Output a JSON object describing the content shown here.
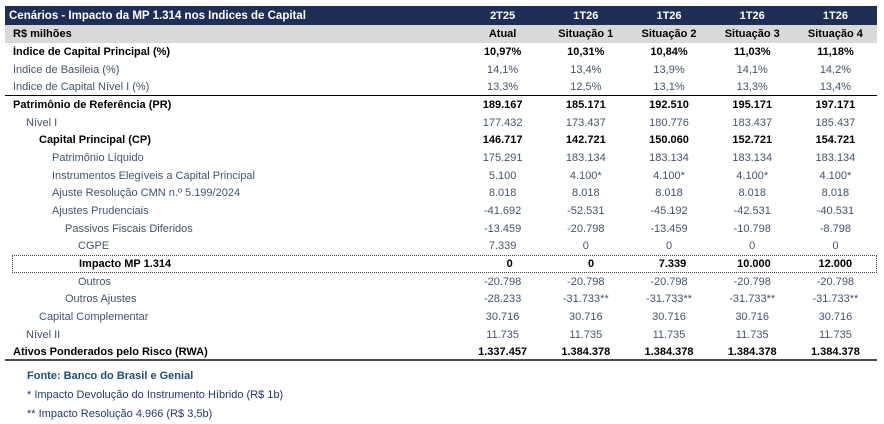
{
  "title": "Cenários - Impacto da MP 1.314 nos Índices de Capital",
  "unit_label": "R$ milhões",
  "columns": [
    "2T25",
    "1T26",
    "1T26",
    "1T26",
    "1T26"
  ],
  "subcolumns": [
    "Atual",
    "Situação 1",
    "Situação 2",
    "Situação 3",
    "Situação 4"
  ],
  "rows": [
    {
      "label": "Índice de Capital Principal (%)",
      "indent": 0,
      "bold": true,
      "values": [
        "10,97%",
        "10,31%",
        "10,84%",
        "11,03%",
        "11,18%"
      ]
    },
    {
      "label": "Índice de Basileia (%)",
      "indent": 0,
      "bold": false,
      "values": [
        "14,1%",
        "13,4%",
        "13,9%",
        "14,1%",
        "14,2%"
      ]
    },
    {
      "label": "Índice de Capital Nível I (%)",
      "indent": 0,
      "bold": false,
      "values": [
        "13,3%",
        "12,5%",
        "13,1%",
        "13,3%",
        "13,4%"
      ],
      "rule_below": "thin"
    },
    {
      "label": "Patrimônio de Referência (PR)",
      "indent": 0,
      "bold": true,
      "values": [
        "189.167",
        "185.171",
        "192.510",
        "195.171",
        "197.171"
      ]
    },
    {
      "label": "Nível I",
      "indent": 1,
      "bold": false,
      "values": [
        "177.432",
        "173.437",
        "180.776",
        "183.437",
        "185.437"
      ]
    },
    {
      "label": "Capital Principal (CP)",
      "indent": 2,
      "bold": true,
      "values": [
        "146.717",
        "142.721",
        "150.060",
        "152.721",
        "154.721"
      ]
    },
    {
      "label": "Patrimônio Líquido",
      "indent": 3,
      "bold": false,
      "values": [
        "175.291",
        "183.134",
        "183.134",
        "183.134",
        "183.134"
      ]
    },
    {
      "label": "Instrumentos Elegíveis a Capital Principal",
      "indent": 3,
      "bold": false,
      "values": [
        "5.100",
        "4.100*",
        "4.100*",
        "4.100*",
        "4.100*"
      ]
    },
    {
      "label": "Ajuste Resolução CMN n.º 5.199/2024",
      "indent": 3,
      "bold": false,
      "values": [
        "8.018",
        "8.018",
        "8.018",
        "8.018",
        "8.018"
      ]
    },
    {
      "label": "Ajustes Prudenciais",
      "indent": 3,
      "bold": false,
      "values": [
        "-41.692",
        "-52.531",
        "-45.192",
        "-42.531",
        "-40.531"
      ]
    },
    {
      "label": "Passivos Fiscais Diferidos",
      "indent": 4,
      "bold": false,
      "values": [
        "-13.459",
        "-20.798",
        "-13.459",
        "-10.798",
        "-8.798"
      ]
    },
    {
      "label": "CGPE",
      "indent": 5,
      "bold": false,
      "values": [
        "7.339",
        "0",
        "0",
        "0",
        "0"
      ]
    },
    {
      "label": "Impacto MP 1.314",
      "indent": 5,
      "bold": true,
      "highlight": true,
      "values": [
        "0",
        "0",
        "7.339",
        "10.000",
        "12.000"
      ]
    },
    {
      "label": "Outros",
      "indent": 5,
      "bold": false,
      "values": [
        "-20.798",
        "-20.798",
        "-20.798",
        "-20.798",
        "-20.798"
      ]
    },
    {
      "label": "Outros Ajustes",
      "indent": 4,
      "bold": false,
      "values": [
        "-28.233",
        "-31.733**",
        "-31.733**",
        "-31.733**",
        "-31.733**"
      ]
    },
    {
      "label": "Capital Complementar",
      "indent": 2,
      "bold": false,
      "values": [
        "30.716",
        "30.716",
        "30.716",
        "30.716",
        "30.716"
      ]
    },
    {
      "label": "Nível II",
      "indent": 1,
      "bold": false,
      "values": [
        "11.735",
        "11.735",
        "11.735",
        "11.735",
        "11.735"
      ]
    },
    {
      "label": "Ativos Ponderados pelo Risco (RWA)",
      "indent": 0,
      "bold": true,
      "values": [
        "1.337.457",
        "1.384.378",
        "1.384.378",
        "1.384.378",
        "1.384.378"
      ],
      "rule_below": "thick"
    }
  ],
  "footer": {
    "source": "Fonte: Banco do Brasil e Genial",
    "footnotes": [
      "* Impacto Devolução do Instrumento Híbrido (R$ 1b)",
      "** Impacto Resolução 4.966 (R$ 3,5b)"
    ]
  },
  "colors": {
    "header_navy": "#1F2E56",
    "band_gray": "#D9D9D9",
    "body_text_blue": "#44546A",
    "source_blue": "#1F4E79"
  }
}
